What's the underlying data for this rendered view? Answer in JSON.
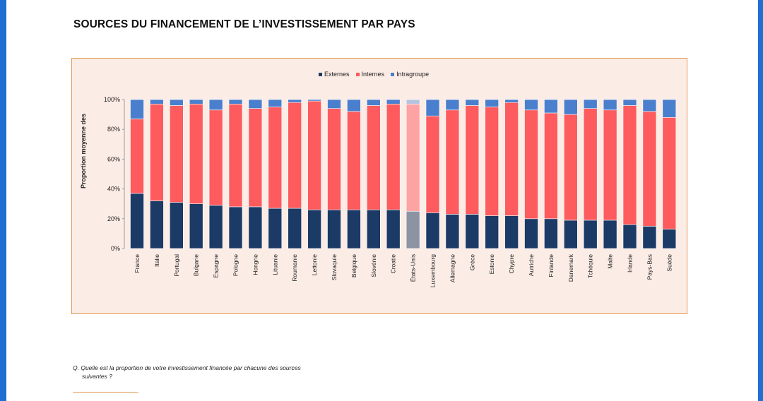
{
  "page": {
    "title": "SOURCES DU FINANCEMENT DE L’INVESTISSEMENT PAR PAYS",
    "question_line1": "Q. Quelle est la proportion de votre investissement financée par chacune des sources",
    "question_line2": "suivantes ?"
  },
  "colors": {
    "externes": "#1b3a65",
    "internes": "#fd5b5e",
    "intragroupe": "#4a7fcd",
    "externes_highlight": "#8c94a3",
    "internes_highlight": "#fda3a3",
    "intragroupe_highlight": "#b5c4de",
    "background": "#fcece6",
    "border": "#e29a56"
  },
  "chart_data": {
    "type": "bar",
    "stacked": true,
    "title": "",
    "xlabel": "",
    "ylabel": "Proportion moyenne des",
    "ylim": [
      0,
      100
    ],
    "yticks": [
      "0%",
      "20%",
      "40%",
      "60%",
      "80%",
      "100%"
    ],
    "legend_position": "top-center",
    "highlight_category": "États-Unis",
    "categories": [
      "France",
      "Italie",
      "Portugal",
      "Bulgarie",
      "Espagne",
      "Pologne",
      "Hongrie",
      "Lituanie",
      "Roumanie",
      "Lettonie",
      "Slovaquie",
      "Belgique",
      "Slovénie",
      "Croatie",
      "États-Unis",
      "Luxembourg",
      "Allemagne",
      "Grèce",
      "Estonie",
      "Chypre",
      "Autriche",
      "Finlande",
      "Danemark",
      "Tchéquie",
      "Malte",
      "Irlande",
      "Pays-Bas",
      "Suède"
    ],
    "series": [
      {
        "name": "Externes",
        "values": [
          37,
          32,
          31,
          30,
          29,
          28,
          28,
          27,
          27,
          26,
          26,
          26,
          26,
          26,
          25,
          24,
          23,
          23,
          22,
          22,
          20,
          20,
          19,
          19,
          19,
          16,
          15,
          13
        ]
      },
      {
        "name": "Internes",
        "values": [
          50,
          65,
          65,
          67,
          64,
          69,
          66,
          68,
          71,
          73,
          68,
          66,
          70,
          71,
          72,
          65,
          70,
          73,
          73,
          76,
          73,
          71,
          71,
          75,
          74,
          80,
          77,
          75
        ]
      },
      {
        "name": "Intragroupe",
        "values": [
          13,
          3,
          4,
          3,
          7,
          3,
          6,
          5,
          2,
          1,
          6,
          8,
          4,
          3,
          3,
          11,
          7,
          4,
          5,
          2,
          7,
          9,
          10,
          6,
          7,
          4,
          8,
          12
        ]
      }
    ]
  }
}
